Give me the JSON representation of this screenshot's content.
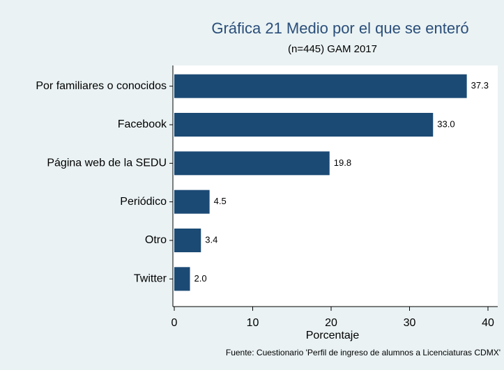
{
  "chart_data": {
    "type": "bar",
    "orientation": "horizontal",
    "title": "Gráfica 21 Medio por el que se enteró",
    "subtitle": "(n=445) GAM 2017",
    "xlabel": "Porcentaje",
    "source": "Fuente: Cuestionario 'Perfil de ingreso de alumnos a Licenciaturas CDMX'",
    "categories": [
      "Por familiares o conocidos",
      "Facebook",
      "Página web de la SEDU",
      "Periódico",
      "Otro",
      "Twitter"
    ],
    "values": [
      37.3,
      33.0,
      19.8,
      4.5,
      3.4,
      2.0
    ],
    "value_labels": [
      "37.3",
      "33.0",
      "19.8",
      "4.5",
      "3.4",
      "2.0"
    ],
    "color": "#1b4a74",
    "xlim": [
      0,
      40
    ],
    "xticks": [
      0,
      10,
      20,
      30,
      40
    ],
    "grid": false
  }
}
